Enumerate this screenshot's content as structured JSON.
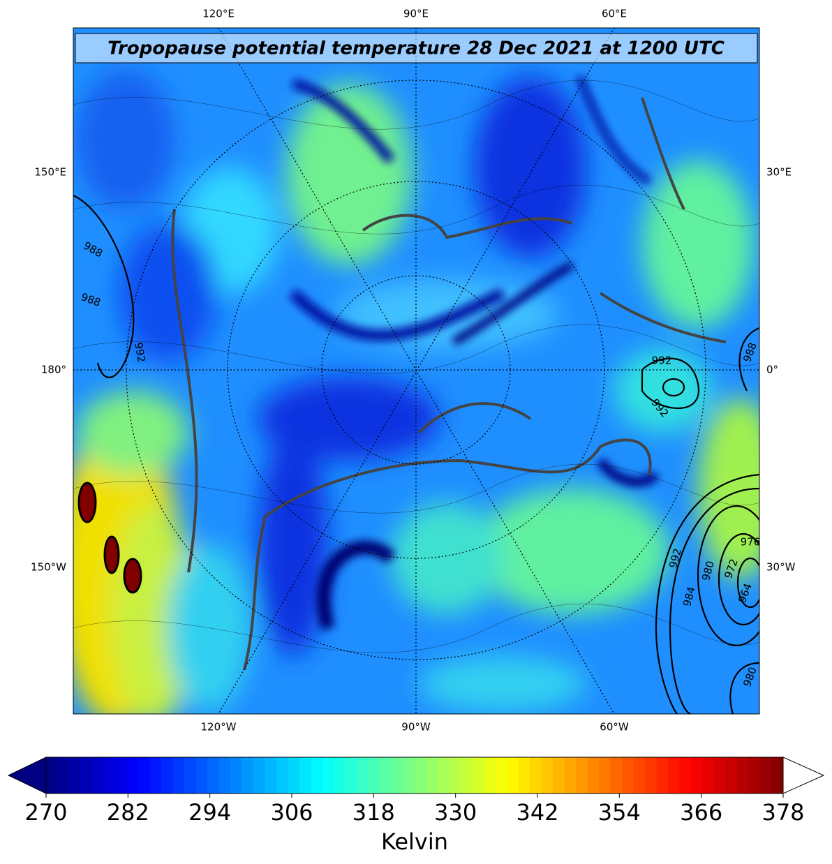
{
  "title": "Tropopause potential temperature 28 Dec 2021 at 1200 UTC",
  "map": {
    "lon_labels": {
      "top": [
        "120°E",
        "90°E",
        "60°E"
      ],
      "bottom": [
        "120°W",
        "90°W",
        "60°W"
      ],
      "left": [
        "150°E",
        "180°",
        "150°W"
      ],
      "right": [
        "30°E",
        "0°",
        "30°W"
      ]
    },
    "contour_labels": [
      "988",
      "988",
      "992",
      "992",
      "992",
      "988",
      "992",
      "980",
      "984",
      "976",
      "972",
      "964",
      "980"
    ]
  },
  "colorbar": {
    "lim": [
      270,
      378
    ],
    "ticks": [
      270,
      282,
      294,
      306,
      318,
      330,
      342,
      354,
      366,
      378
    ],
    "label": "Kelvin",
    "cmap": "jet",
    "extend": "both"
  }
}
